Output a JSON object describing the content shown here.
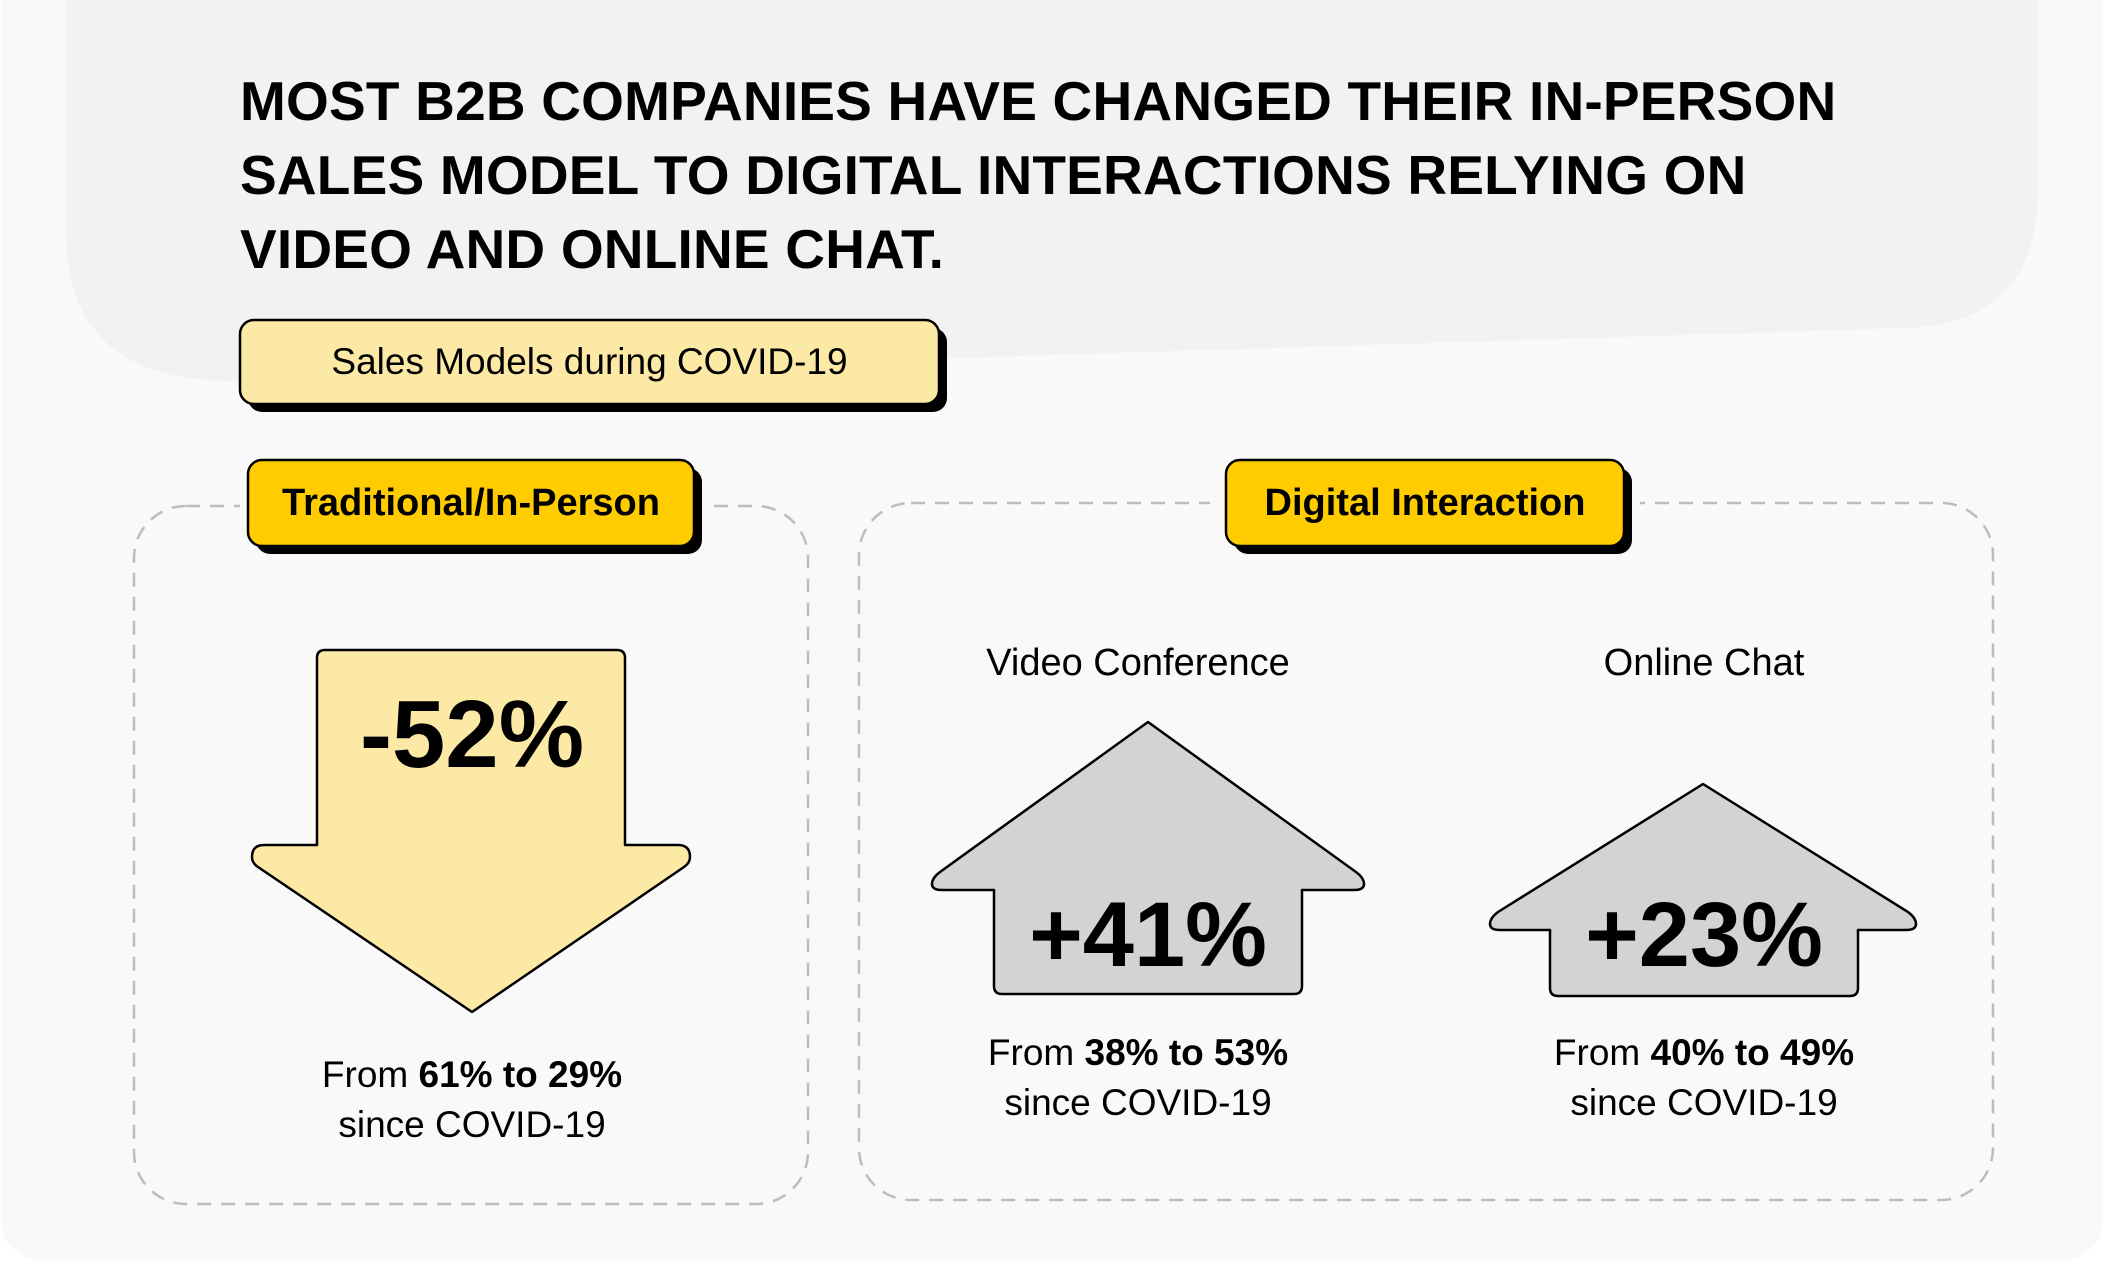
{
  "headline": {
    "lines": [
      "MOST B2B COMPANIES HAVE CHANGED THEIR IN-PERSON",
      "SALES MODEL TO DIGITAL INTERACTIONS RELYING ON",
      "VIDEO AND ONLINE CHAT."
    ]
  },
  "subtitle_tag": "Sales Models during COVID-19",
  "colors": {
    "accent_yellow": "#FFCC00",
    "light_yellow": "#FCE9A6",
    "arrow_gray": "#D3D3D3",
    "header_bg": "#F2F2F2",
    "panel_bg": "#F9F9F9",
    "dashed_border": "#BDBDBD"
  },
  "traditional": {
    "tag": "Traditional/In-Person",
    "arrow_icon": "down-arrow-icon",
    "change": "-52%",
    "caption_prefix": "From ",
    "caption_bold": "61% to 29%",
    "caption_suffix": "since COVID-19"
  },
  "digital": {
    "tag": "Digital Interaction",
    "video": {
      "label": "Video Conference",
      "arrow_icon": "up-arrow-icon",
      "change": "+41%",
      "caption_prefix": "From ",
      "caption_bold": "38% to 53%",
      "caption_suffix": "since COVID-19"
    },
    "chat": {
      "label": "Online Chat",
      "arrow_icon": "up-arrow-icon",
      "change": "+23%",
      "caption_prefix": "From ",
      "caption_bold": "40% to 49%",
      "caption_suffix": "since COVID-19"
    }
  }
}
